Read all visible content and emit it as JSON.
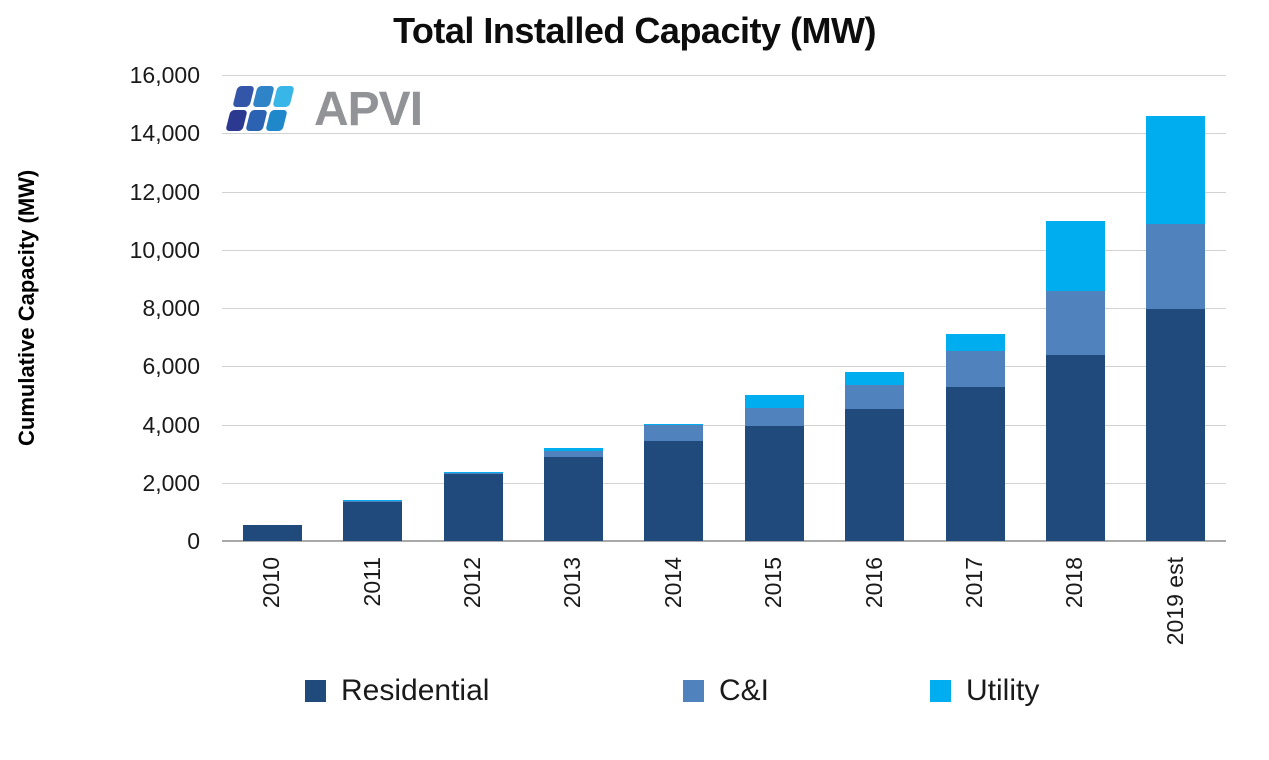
{
  "branding": {
    "logo_text": "APVI"
  },
  "chart_data": {
    "type": "bar",
    "stacked": true,
    "title": "Total Installed Capacity (MW)",
    "ylabel": "Cumulative Capacity (MW)",
    "xlabel": "",
    "categories": [
      "2010",
      "2011",
      "2012",
      "2013",
      "2014",
      "2015",
      "2016",
      "2017",
      "2018",
      "2019 est"
    ],
    "series": [
      {
        "name": "Residential",
        "color": "#20497C",
        "values": [
          560,
          1350,
          2300,
          2900,
          3450,
          3950,
          4530,
          5280,
          6400,
          7950
        ]
      },
      {
        "name": "C&I",
        "color": "#5083BE",
        "values": [
          0,
          20,
          30,
          200,
          520,
          620,
          830,
          1260,
          2180,
          2950
        ]
      },
      {
        "name": "Utility",
        "color": "#00AEEF",
        "values": [
          0,
          30,
          30,
          80,
          40,
          430,
          450,
          560,
          2420,
          3700
        ]
      }
    ],
    "totals": [
      560,
      1400,
      2360,
      3180,
      4010,
      5000,
      5810,
      7100,
      11000,
      14600
    ],
    "ylim": [
      0,
      16000
    ],
    "yticks": [
      0,
      2000,
      4000,
      6000,
      8000,
      10000,
      12000,
      14000,
      16000
    ],
    "ytick_labels": [
      "0",
      "2,000",
      "4,000",
      "6,000",
      "8,000",
      "10,000",
      "12,000",
      "14,000",
      "16,000"
    ],
    "grid": true,
    "legend_position": "bottom",
    "style": {
      "gridline_color": "#D2D2D2",
      "axis_line_color": "#A9A9A9",
      "title_color": "#0D0D0D",
      "logo_text_color": "#919396",
      "logo_tile_colors_top": [
        "#3456A8",
        "#2E84C6",
        "#39B6E8"
      ],
      "logo_tile_colors_bottom": [
        "#2B3A90",
        "#2B62B2",
        "#1E88CB"
      ]
    }
  }
}
